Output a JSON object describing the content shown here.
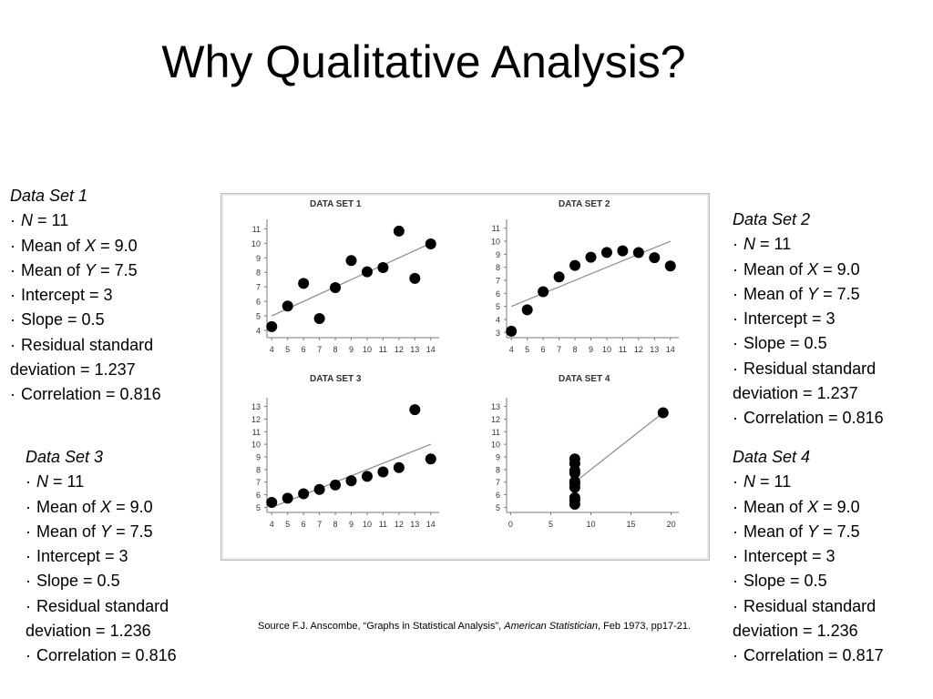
{
  "slide": {
    "title": "Why Qualitative Analysis?"
  },
  "stats_panels": [
    {
      "heading": "Data Set 1",
      "n": "N = 11",
      "mean_x": "Mean of X = 9.0",
      "mean_y": "Mean of Y = 7.5",
      "intercept": "Intercept = 3",
      "slope": "Slope = 0.5",
      "residual": "Residual standard deviation = 1.237",
      "correlation": "Correlation = 0.816"
    },
    {
      "heading": "Data Set 2",
      "n": "N = 11",
      "mean_x": "Mean of X = 9.0",
      "mean_y": "Mean of Y = 7.5",
      "intercept": "Intercept = 3",
      "slope": "Slope = 0.5",
      "residual": "Residual standard deviation = 1.237",
      "correlation": "Correlation = 0.816"
    },
    {
      "heading": "Data Set 3",
      "n": "N = 11",
      "mean_x": "Mean of X = 9.0",
      "mean_y": "Mean of Y = 7.5",
      "intercept": "Intercept = 3",
      "slope": "Slope = 0.5",
      "residual": "Residual standard deviation = 1.236",
      "correlation": "Correlation = 0.816"
    },
    {
      "heading": "Data Set 4",
      "n": "N = 11",
      "mean_x": "Mean of X = 9.0",
      "mean_y": "Mean of Y = 7.5",
      "intercept": "Intercept = 3",
      "slope": "Slope = 0.5",
      "residual": "Residual standard deviation = 1.236",
      "correlation": "Correlation = 0.817"
    }
  ],
  "source": {
    "prefix": "Source F.J. Anscombe, “Graphs in Statistical Analysis”, ",
    "journal": "American Statistician",
    "suffix": ", Feb 1973, pp17-21."
  },
  "colors": {
    "text": "#000000",
    "marker": "#000000",
    "fit_line": "#8a8a8a",
    "axis": "#7a7a7a",
    "figure_border": "#bdbdbd"
  },
  "chart_data": [
    {
      "type": "scatter",
      "title": "DATA SET 1",
      "xlabel": "",
      "ylabel": "",
      "xlim": [
        3.7,
        14.3
      ],
      "ylim": [
        3.5,
        11.4
      ],
      "x_ticks": [
        4,
        5,
        6,
        7,
        8,
        9,
        10,
        11,
        12,
        13,
        14
      ],
      "y_ticks": [
        4,
        5,
        6,
        7,
        8,
        9,
        10,
        11
      ],
      "x": [
        10,
        8,
        13,
        9,
        11,
        14,
        6,
        4,
        12,
        7,
        5
      ],
      "y": [
        8.04,
        6.95,
        7.58,
        8.81,
        8.33,
        9.96,
        7.24,
        4.26,
        10.84,
        4.82,
        5.68
      ],
      "fit_line": {
        "intercept": 3,
        "slope": 0.5,
        "x_range": [
          4,
          14
        ]
      }
    },
    {
      "type": "scatter",
      "title": "DATA SET 2",
      "xlabel": "",
      "ylabel": "",
      "xlim": [
        3.7,
        14.3
      ],
      "ylim": [
        2.6,
        11.4
      ],
      "x_ticks": [
        4,
        5,
        6,
        7,
        8,
        9,
        10,
        11,
        12,
        13,
        14
      ],
      "y_ticks": [
        3,
        4,
        5,
        6,
        7,
        8,
        9,
        10,
        11
      ],
      "x": [
        10,
        8,
        13,
        9,
        11,
        14,
        6,
        4,
        12,
        7,
        5
      ],
      "y": [
        9.14,
        8.14,
        8.74,
        8.77,
        9.26,
        8.1,
        6.13,
        3.1,
        9.13,
        7.26,
        4.74
      ],
      "fit_line": {
        "intercept": 3,
        "slope": 0.5,
        "x_range": [
          4,
          14
        ]
      }
    },
    {
      "type": "scatter",
      "title": "DATA SET 3",
      "xlabel": "",
      "ylabel": "",
      "xlim": [
        3.7,
        14.3
      ],
      "ylim": [
        4.6,
        13.4
      ],
      "x_ticks": [
        4,
        5,
        6,
        7,
        8,
        9,
        10,
        11,
        12,
        13,
        14
      ],
      "y_ticks": [
        5,
        6,
        7,
        8,
        9,
        10,
        11,
        12,
        13
      ],
      "x": [
        10,
        8,
        13,
        9,
        11,
        14,
        6,
        4,
        12,
        7,
        5
      ],
      "y": [
        7.46,
        6.77,
        12.74,
        7.11,
        7.81,
        8.84,
        6.08,
        5.39,
        8.15,
        6.42,
        5.73
      ],
      "fit_line": {
        "intercept": 3,
        "slope": 0.5,
        "x_range": [
          4,
          14
        ]
      }
    },
    {
      "type": "scatter",
      "title": "DATA SET 4",
      "xlabel": "",
      "ylabel": "",
      "xlim": [
        -0.5,
        20.5
      ],
      "ylim": [
        4.6,
        13.4
      ],
      "x_ticks": [
        0,
        5,
        10,
        15,
        20
      ],
      "y_ticks": [
        5,
        6,
        7,
        8,
        9,
        10,
        11,
        12,
        13
      ],
      "x": [
        8,
        8,
        8,
        8,
        8,
        8,
        8,
        19,
        8,
        8,
        8
      ],
      "y": [
        6.58,
        5.76,
        7.71,
        8.84,
        8.47,
        7.04,
        5.25,
        12.5,
        5.56,
        7.91,
        6.89
      ],
      "fit_line": {
        "intercept": 3,
        "slope": 0.5,
        "x_range": [
          8,
          19
        ]
      }
    }
  ]
}
